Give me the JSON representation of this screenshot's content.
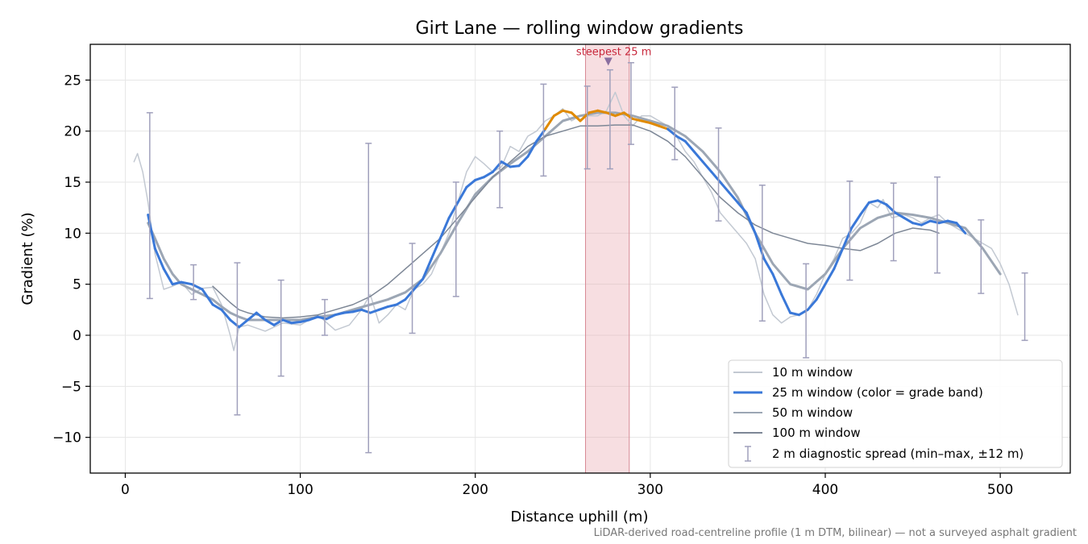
{
  "chart_data": {
    "type": "line",
    "title": "Girt Lane — rolling window gradients",
    "xlabel": "Distance uphill (m)",
    "ylabel": "Gradient (%)",
    "xlim": [
      -20,
      540
    ],
    "ylim": [
      -13.5,
      28.5
    ],
    "xticks": [
      0,
      100,
      200,
      300,
      400,
      500
    ],
    "yticks": [
      -10,
      -5,
      0,
      5,
      10,
      15,
      20,
      25
    ],
    "grid": true,
    "legend_position": "lower-right",
    "footnote": "LiDAR-derived road-centreline profile (1 m DTM, bilinear) — not a surveyed asphalt gradient",
    "highlight": {
      "x_start": 263,
      "x_end": 288,
      "color": "#e8a0a8",
      "marker_x": 276,
      "marker_y": 26.8,
      "label": "steepest 25 m"
    },
    "grade_band_colors": {
      "normal": "#3a78d8",
      "steep": "#e08a00",
      "threshold": 20.3
    },
    "series": [
      {
        "name": "10 m window",
        "color": "#c3c9d2",
        "x": [
          5,
          7,
          10,
          13,
          17,
          22,
          27,
          32,
          38,
          44,
          50,
          55,
          60,
          62,
          65,
          70,
          80,
          90,
          100,
          110,
          120,
          128,
          135,
          140,
          145,
          150,
          155,
          160,
          165,
          170,
          175,
          180,
          185,
          190,
          195,
          200,
          205,
          210,
          215,
          220,
          225,
          230,
          235,
          240,
          245,
          250,
          255,
          260,
          265,
          270,
          275,
          280,
          285,
          290,
          295,
          300,
          305,
          310,
          315,
          320,
          325,
          330,
          335,
          340,
          345,
          350,
          355,
          360,
          365,
          370,
          375,
          380,
          385,
          390,
          395,
          400,
          405,
          410,
          415,
          420,
          425,
          430,
          433,
          438,
          445,
          450,
          455,
          460,
          465,
          470,
          475,
          480,
          485,
          490,
          495,
          500,
          505,
          510
        ],
        "y": [
          17.0,
          17.8,
          16.0,
          13.0,
          8.0,
          4.5,
          4.8,
          5.2,
          4.0,
          4.6,
          4.7,
          3.0,
          0.0,
          -1.5,
          0.8,
          1.0,
          0.4,
          1.2,
          1.0,
          2.0,
          0.5,
          1.0,
          2.5,
          4.0,
          1.2,
          2.0,
          3.0,
          2.5,
          4.5,
          5.0,
          6.0,
          8.0,
          10.0,
          13.0,
          16.0,
          17.5,
          16.8,
          16.0,
          16.5,
          18.5,
          18.0,
          19.5,
          20.0,
          21.0,
          21.5,
          22.2,
          21.0,
          21.5,
          21.5,
          21.5,
          22.0,
          23.8,
          21.5,
          20.5,
          21.5,
          21.5,
          21.0,
          20.5,
          19.5,
          18.0,
          17.0,
          15.5,
          14.0,
          12.0,
          11.0,
          10.0,
          9.0,
          7.5,
          4.0,
          2.0,
          1.2,
          1.8,
          2.0,
          2.5,
          4.0,
          6.0,
          7.5,
          9.5,
          10.0,
          11.0,
          13.0,
          12.5,
          13.3,
          11.5,
          11.8,
          11.5,
          11.0,
          11.5,
          11.8,
          11.0,
          10.5,
          10.0,
          9.5,
          9.0,
          8.5,
          7.0,
          5.0,
          2.0
        ]
      },
      {
        "name": "25 m window (color = grade band)",
        "color": "#3a78d8",
        "x": [
          13,
          17,
          22,
          27,
          32,
          38,
          44,
          50,
          55,
          60,
          65,
          70,
          75,
          80,
          85,
          90,
          95,
          100,
          105,
          110,
          115,
          120,
          125,
          130,
          135,
          140,
          145,
          150,
          155,
          160,
          165,
          170,
          175,
          180,
          185,
          190,
          195,
          200,
          205,
          210,
          215,
          220,
          225,
          230,
          235,
          240,
          245,
          250,
          255,
          260,
          265,
          270,
          275,
          280,
          285,
          290,
          295,
          300,
          305,
          310,
          315,
          320,
          325,
          330,
          335,
          340,
          345,
          350,
          355,
          360,
          365,
          370,
          375,
          380,
          385,
          390,
          395,
          400,
          405,
          410,
          415,
          420,
          425,
          430,
          435,
          440,
          445,
          450,
          455,
          460,
          465,
          470,
          475,
          480
        ],
        "y": [
          11.8,
          8.5,
          6.5,
          5.0,
          5.2,
          5.0,
          4.5,
          3.0,
          2.5,
          1.5,
          0.8,
          1.5,
          2.2,
          1.5,
          1.0,
          1.5,
          1.2,
          1.3,
          1.5,
          1.8,
          1.6,
          2.0,
          2.2,
          2.3,
          2.5,
          2.2,
          2.5,
          2.8,
          3.0,
          3.5,
          4.5,
          5.5,
          7.5,
          9.5,
          11.5,
          13.0,
          14.5,
          15.2,
          15.5,
          16.0,
          17.0,
          16.5,
          16.6,
          17.5,
          19.0,
          20.2,
          21.5,
          22.0,
          21.8,
          21.0,
          21.8,
          22.0,
          21.8,
          21.5,
          21.8,
          21.2,
          21.0,
          20.8,
          20.5,
          20.2,
          19.5,
          19.0,
          18.0,
          17.0,
          16.0,
          15.0,
          14.0,
          13.0,
          12.0,
          10.0,
          7.5,
          6.0,
          4.0,
          2.2,
          2.0,
          2.5,
          3.5,
          5.0,
          6.5,
          8.5,
          10.5,
          11.8,
          13.0,
          13.2,
          12.8,
          12.0,
          11.5,
          11.0,
          10.8,
          11.2,
          11.0,
          11.2,
          11.0,
          10.0
        ]
      },
      {
        "name": "50 m window",
        "color": "#9ca6b4",
        "x": [
          13,
          17,
          22,
          27,
          32,
          38,
          44,
          50,
          55,
          60,
          65,
          70,
          80,
          90,
          100,
          110,
          120,
          130,
          140,
          150,
          160,
          170,
          180,
          190,
          200,
          210,
          220,
          230,
          240,
          250,
          260,
          270,
          280,
          290,
          300,
          310,
          320,
          330,
          340,
          350,
          360,
          370,
          380,
          390,
          400,
          410,
          420,
          430,
          440,
          450,
          460,
          470,
          480,
          490,
          500
        ],
        "y": [
          11.0,
          9.5,
          7.5,
          6.0,
          5.0,
          4.5,
          4.0,
          3.5,
          2.8,
          2.2,
          1.8,
          1.5,
          1.5,
          1.5,
          1.5,
          1.8,
          2.0,
          2.5,
          3.0,
          3.5,
          4.2,
          5.5,
          8.0,
          11.0,
          13.8,
          15.5,
          16.8,
          18.0,
          19.5,
          21.0,
          21.5,
          21.8,
          21.8,
          21.5,
          21.0,
          20.5,
          19.5,
          18.0,
          16.0,
          13.5,
          10.0,
          7.0,
          5.0,
          4.5,
          6.0,
          8.5,
          10.5,
          11.5,
          12.0,
          11.8,
          11.5,
          11.0,
          10.5,
          8.5,
          6.0
        ]
      },
      {
        "name": "100 m window",
        "color": "#7d8796",
        "x": [
          50,
          55,
          60,
          65,
          70,
          75,
          80,
          90,
          100,
          110,
          120,
          130,
          140,
          150,
          160,
          170,
          180,
          190,
          200,
          210,
          220,
          230,
          240,
          250,
          260,
          270,
          280,
          290,
          300,
          310,
          320,
          330,
          340,
          350,
          360,
          370,
          380,
          390,
          400,
          410,
          420,
          430,
          440,
          450,
          460,
          465
        ],
        "y": [
          4.8,
          4.0,
          3.2,
          2.5,
          2.2,
          2.0,
          1.8,
          1.7,
          1.8,
          2.0,
          2.5,
          3.0,
          3.8,
          5.0,
          6.5,
          8.0,
          9.5,
          11.5,
          13.5,
          15.5,
          17.0,
          18.5,
          19.5,
          20.0,
          20.5,
          20.5,
          20.6,
          20.6,
          20.0,
          19.0,
          17.5,
          15.5,
          13.5,
          12.0,
          10.8,
          10.0,
          9.5,
          9.0,
          8.8,
          8.5,
          8.3,
          9.0,
          10.0,
          10.5,
          10.3,
          10.0
        ]
      }
    ],
    "error_bars": {
      "name": "2 m diagnostic spread (min–max, ±12 m)",
      "color": "#a0a0bc",
      "x": [
        14,
        39,
        64,
        89,
        114,
        139,
        164,
        189,
        214,
        239,
        264,
        277,
        289,
        314,
        339,
        364,
        389,
        414,
        439,
        464,
        489,
        514
      ],
      "y_min": [
        3.6,
        3.5,
        -7.8,
        -4.0,
        0.0,
        -11.5,
        0.2,
        3.8,
        12.5,
        15.6,
        16.3,
        16.3,
        18.7,
        17.2,
        11.2,
        1.4,
        -2.2,
        5.4,
        7.3,
        6.1,
        4.1,
        -0.5
      ],
      "y_max": [
        21.8,
        6.9,
        7.1,
        5.4,
        3.5,
        18.8,
        9.0,
        15.0,
        20.0,
        24.6,
        24.4,
        26.0,
        26.7,
        24.3,
        20.3,
        14.7,
        7.0,
        15.1,
        14.9,
        15.5,
        11.3,
        6.1
      ]
    }
  }
}
